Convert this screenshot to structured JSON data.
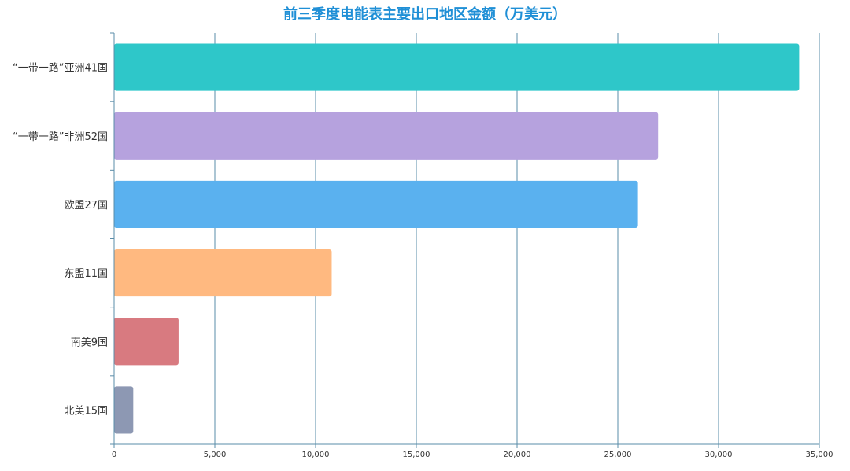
{
  "chart_data": {
    "type": "bar",
    "orientation": "horizontal",
    "title": "前三季度电能表主要出口地区金额（万美元）",
    "categories": [
      "“一带一路”亚洲41国",
      "“一带一路”非洲52国",
      "欧盟27国",
      "东盟11国",
      "南美9国",
      "北美15国"
    ],
    "values": [
      34000,
      27000,
      26000,
      10800,
      3200,
      950
    ],
    "colors": [
      "#2ec7c9",
      "#b6a2de",
      "#5ab1ef",
      "#ffb980",
      "#d87a80",
      "#8d98b3"
    ],
    "xlim": [
      0,
      35000
    ],
    "xticks": [
      0,
      5000,
      10000,
      15000,
      20000,
      25000,
      30000,
      35000
    ],
    "xtick_labels": [
      "0",
      "5,000",
      "10,000",
      "15,000",
      "20,000",
      "25,000",
      "30,000",
      "35,000"
    ],
    "grid": "vertical",
    "gridline_color": "#5a8ca8"
  }
}
